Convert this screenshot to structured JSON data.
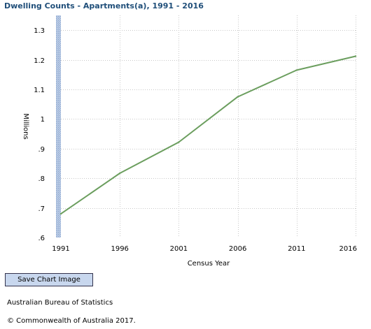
{
  "chart_data": {
    "type": "line",
    "title": "Dwelling Counts - Apartments(a), 1991 - 2016",
    "xlabel": "Census Year",
    "ylabel": "Millions",
    "categories": [
      "1991",
      "1996",
      "2001",
      "2006",
      "2011",
      "2016"
    ],
    "series": [
      {
        "values": [
          0.68,
          0.817,
          0.922,
          1.075,
          1.165,
          1.212
        ],
        "color": "#6b9e5e"
      }
    ],
    "ylim": [
      0.6,
      1.35
    ],
    "yticks": [
      0.6,
      0.7,
      0.8,
      0.9,
      1.0,
      1.1,
      1.2,
      1.3
    ],
    "ytick_labels": [
      ".6",
      ".7",
      ".8",
      ".9",
      "1",
      "1.1",
      "1.2",
      "1.3"
    ],
    "grid": true
  },
  "controls": {
    "save_label": "Save Chart Image"
  },
  "footer": {
    "source": "Australian Bureau of Statistics",
    "copyright": "© Commonwealth of Australia 2017."
  },
  "colors": {
    "title": "#1f4e79",
    "line": "#6b9e5e",
    "grid": "#c8c8c8",
    "axis_bar": "#b7c9e4",
    "button": "#c8d7ee"
  }
}
